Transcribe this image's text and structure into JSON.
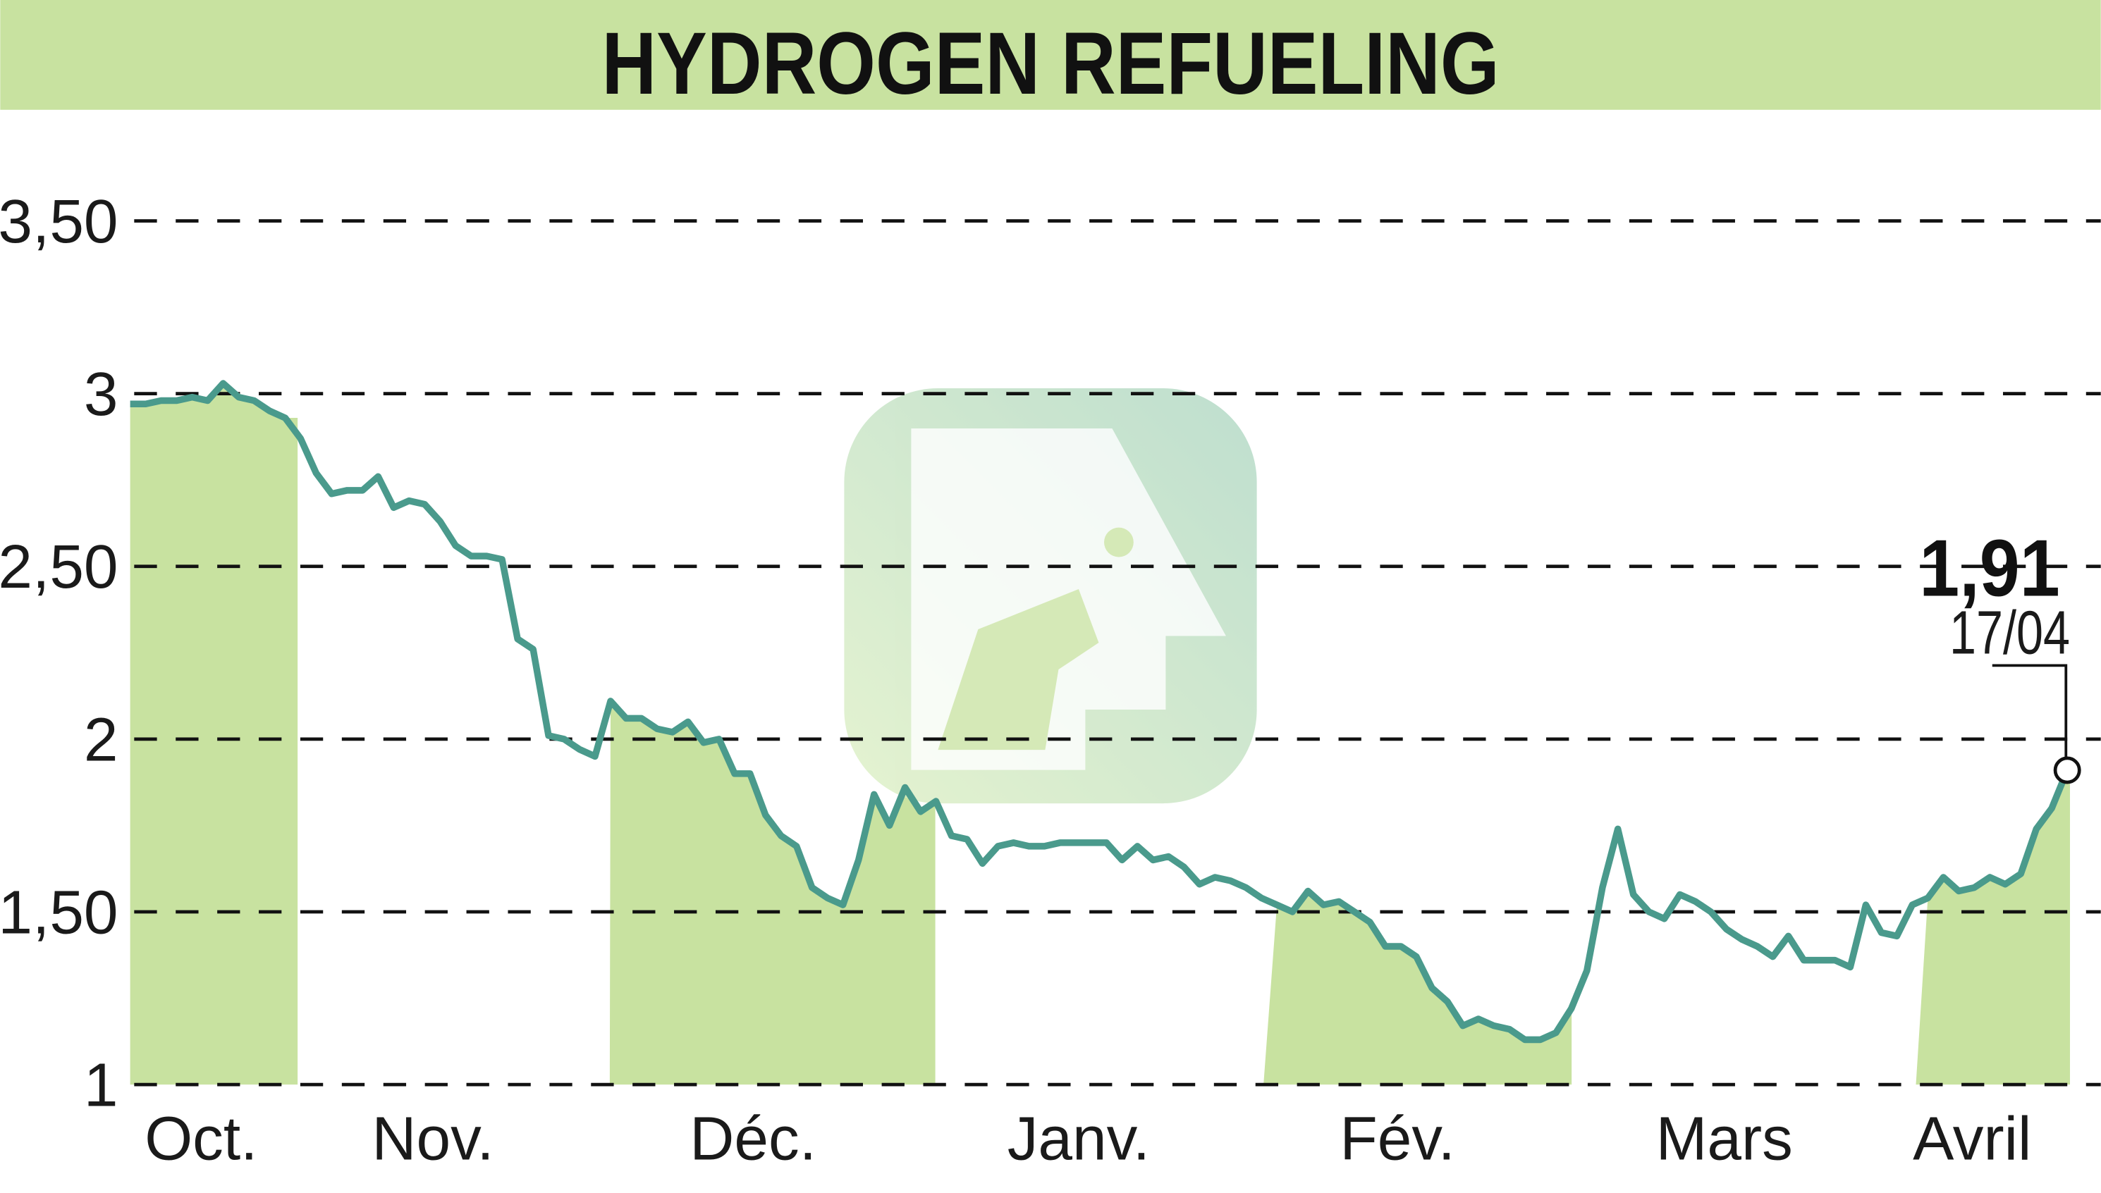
{
  "chart_data": {
    "type": "line",
    "title": "HYDROGEN REFUELING",
    "xlabel": "",
    "ylabel": "",
    "ylim": [
      1,
      3.5
    ],
    "y_ticks": [
      "1",
      "1,50",
      "2",
      "2,50",
      "3",
      "3,50"
    ],
    "y_tick_values": [
      1,
      1.5,
      2,
      2.5,
      3,
      3.5
    ],
    "x_tick_labels": [
      "Oct.",
      "Nov.",
      "Déc.",
      "Janv.",
      "Fév.",
      "Mars",
      "Avril"
    ],
    "shaded_months": [
      "Oct.",
      "Déc.",
      "Fév.",
      "Avril"
    ],
    "grid": "horizontal dashed",
    "last_value_label": "1,91",
    "last_date_label": "17/04",
    "colors": {
      "line": "#4a9a8c",
      "band": "#c8e2a0",
      "title_bg": "#c8e2a0"
    },
    "values": [
      2.97,
      2.97,
      2.98,
      2.98,
      2.99,
      2.98,
      3.03,
      2.99,
      2.98,
      2.95,
      2.93,
      2.87,
      2.77,
      2.71,
      2.72,
      2.72,
      2.76,
      2.67,
      2.69,
      2.68,
      2.63,
      2.56,
      2.53,
      2.53,
      2.52,
      2.29,
      2.26,
      2.01,
      2.0,
      1.97,
      1.95,
      2.11,
      2.06,
      2.06,
      2.03,
      2.02,
      2.05,
      1.99,
      2.0,
      1.9,
      1.9,
      1.78,
      1.72,
      1.69,
      1.57,
      1.54,
      1.52,
      1.65,
      1.84,
      1.75,
      1.86,
      1.79,
      1.82,
      1.72,
      1.71,
      1.64,
      1.69,
      1.7,
      1.69,
      1.69,
      1.7,
      1.7,
      1.7,
      1.7,
      1.65,
      1.69,
      1.65,
      1.66,
      1.63,
      1.58,
      1.6,
      1.59,
      1.57,
      1.54,
      1.52,
      1.5,
      1.56,
      1.52,
      1.53,
      1.5,
      1.47,
      1.4,
      1.4,
      1.37,
      1.28,
      1.24,
      1.17,
      1.19,
      1.17,
      1.16,
      1.13,
      1.13,
      1.15,
      1.22,
      1.33,
      1.57,
      1.74,
      1.55,
      1.5,
      1.48,
      1.55,
      1.53,
      1.5,
      1.45,
      1.42,
      1.4,
      1.37,
      1.43,
      1.36,
      1.36,
      1.36,
      1.34,
      1.52,
      1.44,
      1.43,
      1.52,
      1.54,
      1.6,
      1.56,
      1.57,
      1.6,
      1.58,
      1.61,
      1.74,
      1.8,
      1.91
    ]
  }
}
